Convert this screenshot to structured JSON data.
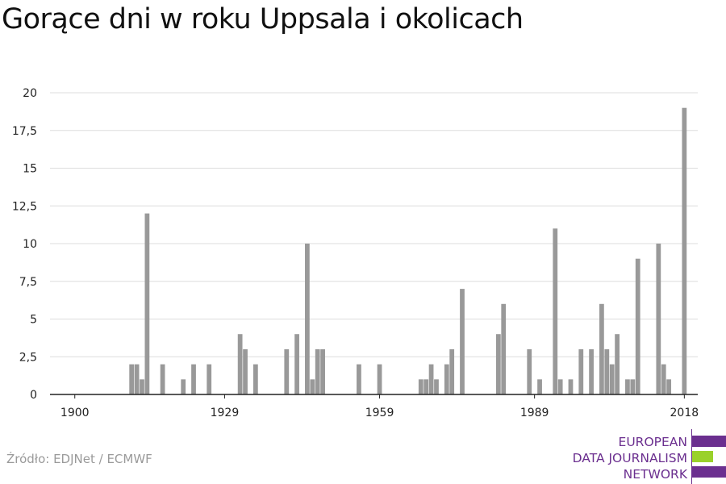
{
  "title": "Gorące dni w roku Uppsala i okolicach",
  "source": "Źródło: EDJNet / ECMWF",
  "logo": {
    "lines": [
      "EUROPEAN",
      "DATA JOURNALISM",
      "NETWORK"
    ],
    "colors": {
      "primary": "#6b2f8f",
      "accent": "#9ad12b"
    }
  },
  "colors": {
    "bar": "#999999",
    "grid": "#dddddd",
    "axis": "#222222"
  },
  "chart_data": {
    "type": "bar",
    "title": "Gorące dni w roku Uppsala i okolicach",
    "xlabel": "",
    "ylabel": "",
    "xlim": [
      1900,
      2019
    ],
    "ylim": [
      0,
      20
    ],
    "grid": true,
    "x_ticks": [
      1900,
      1929,
      1959,
      1989,
      2018
    ],
    "y_ticks": [
      0,
      2.5,
      5,
      7.5,
      10,
      12.5,
      15,
      17.5,
      20
    ],
    "y_tick_labels": [
      "0",
      "2,5",
      "5",
      "7,5",
      "10",
      "12,5",
      "15",
      "17,5",
      "20"
    ],
    "x": [
      1911,
      1912,
      1913,
      1914,
      1917,
      1921,
      1923,
      1926,
      1932,
      1933,
      1935,
      1941,
      1943,
      1945,
      1946,
      1947,
      1948,
      1955,
      1959,
      1967,
      1968,
      1969,
      1970,
      1972,
      1973,
      1975,
      1982,
      1983,
      1988,
      1990,
      1993,
      1994,
      1996,
      1998,
      2000,
      2002,
      2003,
      2004,
      2005,
      2007,
      2008,
      2009,
      2013,
      2014,
      2015,
      2018
    ],
    "values": [
      2,
      2,
      1,
      12,
      2,
      1,
      2,
      2,
      4,
      3,
      2,
      3,
      4,
      10,
      1,
      3,
      3,
      2,
      2,
      1,
      1,
      2,
      1,
      2,
      3,
      7,
      4,
      6,
      3,
      1,
      11,
      1,
      1,
      3,
      3,
      6,
      3,
      2,
      4,
      1,
      1,
      9,
      10,
      2,
      1,
      19
    ]
  }
}
